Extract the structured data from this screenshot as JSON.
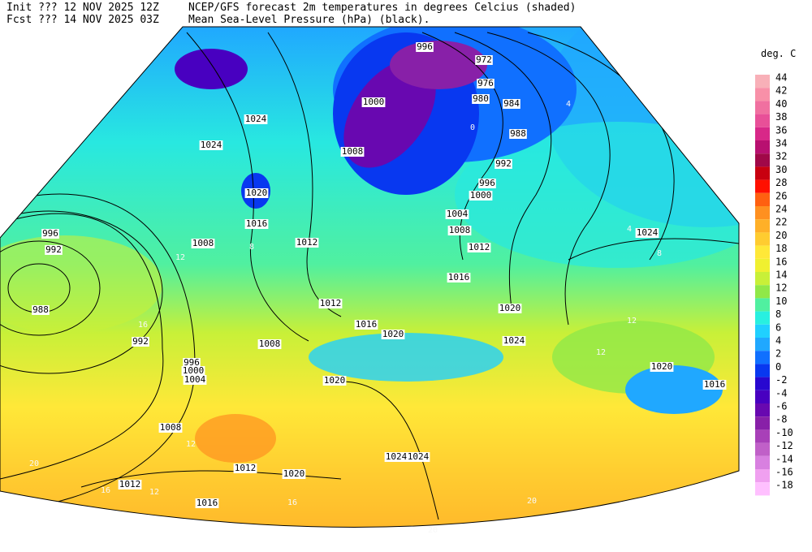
{
  "header": {
    "init": "Init  ??? 12 NOV 2025 12Z",
    "fcst": "Fcst ??? 14 NOV 2025 03Z",
    "title": "NCEP/GFS forecast 2m temperatures in degrees Celcius (shaded)",
    "subtitle": "Mean Sea-Level Pressure (hPa) (black)."
  },
  "colorbar": {
    "unit": "deg. C",
    "levels": [
      {
        "label": "44",
        "color": "#f8b0b8"
      },
      {
        "label": "42",
        "color": "#f890a8"
      },
      {
        "label": "40",
        "color": "#f070a0"
      },
      {
        "label": "38",
        "color": "#e85098"
      },
      {
        "label": "36",
        "color": "#d82888"
      },
      {
        "label": "34",
        "color": "#b81070"
      },
      {
        "label": "32",
        "color": "#a00848"
      },
      {
        "label": "30",
        "color": "#c80010"
      },
      {
        "label": "28",
        "color": "#ff1000"
      },
      {
        "label": "26",
        "color": "#ff6010"
      },
      {
        "label": "24",
        "color": "#ff9020"
      },
      {
        "label": "22",
        "color": "#ffb028"
      },
      {
        "label": "20",
        "color": "#ffcc30"
      },
      {
        "label": "18",
        "color": "#ffe838"
      },
      {
        "label": "16",
        "color": "#f0f030"
      },
      {
        "label": "14",
        "color": "#c8f038"
      },
      {
        "label": "12",
        "color": "#90e848"
      },
      {
        "label": "10",
        "color": "#50f0a0"
      },
      {
        "label": "8",
        "color": "#28f0e0"
      },
      {
        "label": "6",
        "color": "#20d0ff"
      },
      {
        "label": "4",
        "color": "#20a8ff"
      },
      {
        "label": "2",
        "color": "#1070ff"
      },
      {
        "label": "0",
        "color": "#0838f0"
      },
      {
        "label": "-2",
        "color": "#2808d0"
      },
      {
        "label": "-4",
        "color": "#4800c0"
      },
      {
        "label": "-6",
        "color": "#6808b0"
      },
      {
        "label": "-8",
        "color": "#8820a8"
      },
      {
        "label": "-10",
        "color": "#a840b8"
      },
      {
        "label": "-12",
        "color": "#c060c8"
      },
      {
        "label": "-14",
        "color": "#d880e0"
      },
      {
        "label": "-16",
        "color": "#f0a0f0"
      },
      {
        "label": "-18",
        "color": "#ffc0ff"
      }
    ]
  },
  "isobar_labels": [
    996,
    972,
    976,
    980,
    984,
    988,
    992,
    996,
    1000,
    1004,
    1008,
    1012,
    1016,
    1020,
    1024,
    1024,
    1020,
    1016,
    1024,
    1024,
    1020,
    1016,
    1008,
    1000,
    1012,
    1008,
    996,
    992,
    988,
    992,
    996,
    1000,
    1004,
    1008,
    1012,
    1016,
    1020,
    1020,
    1008,
    1012,
    1020,
    1012,
    1016,
    1024,
    1024
  ],
  "temperature_labels": [
    20,
    20,
    20,
    12,
    12,
    12,
    12,
    4,
    8,
    16,
    16,
    12,
    4,
    8,
    0,
    16
  ]
}
